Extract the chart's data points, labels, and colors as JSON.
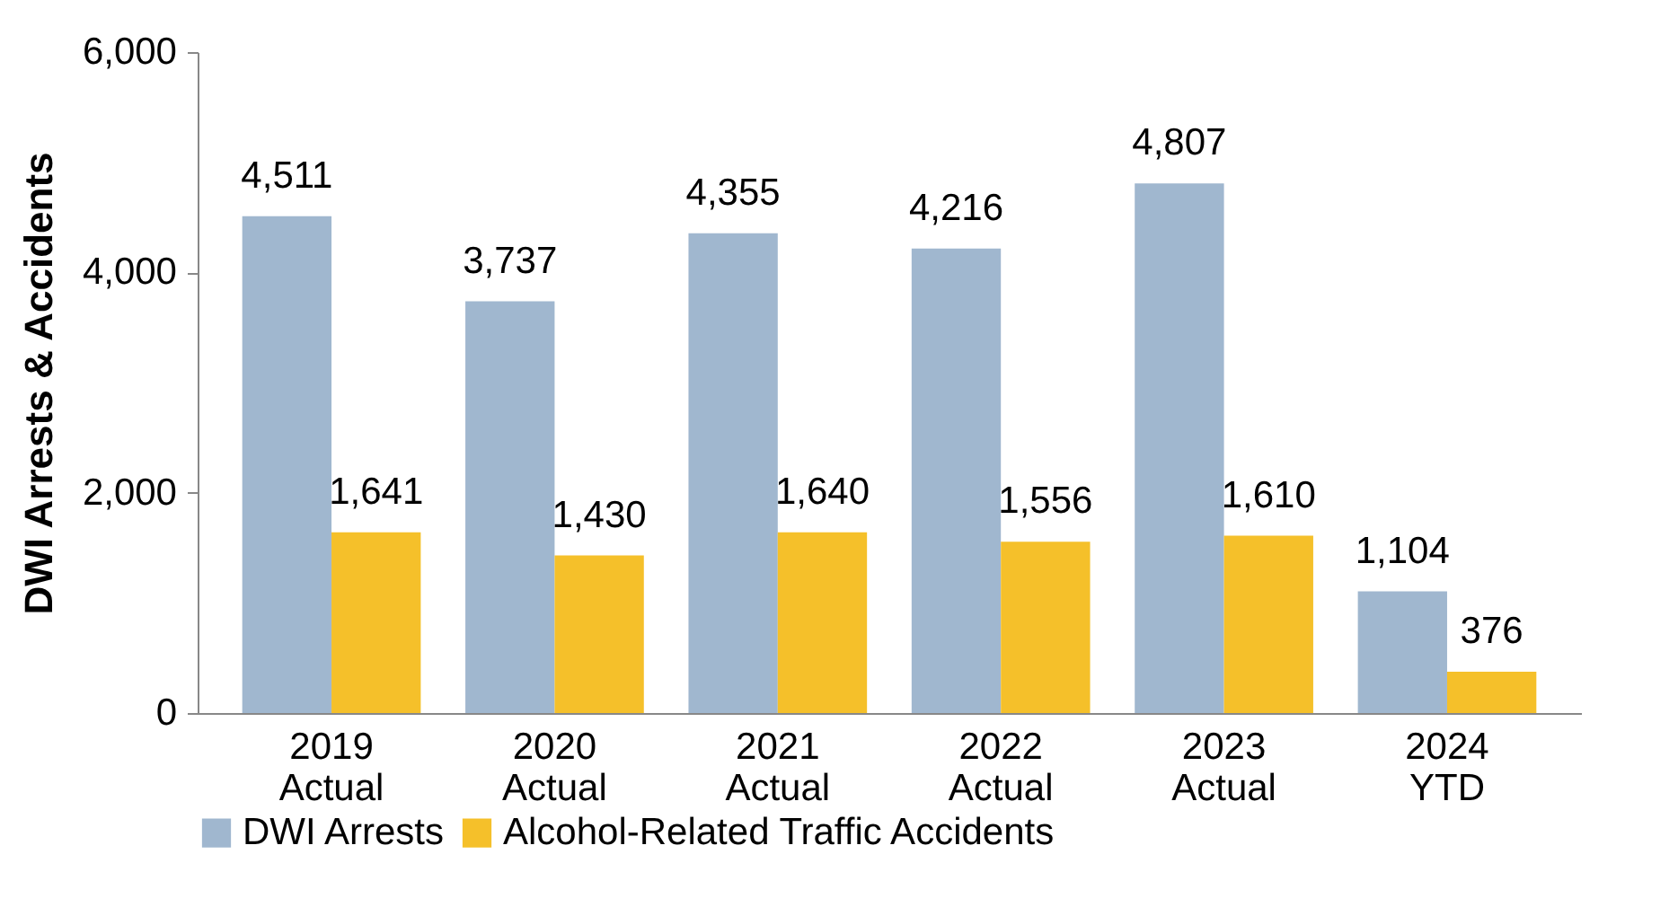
{
  "chart_data": {
    "type": "bar",
    "ylabel": "DWI Arrests & Accidents",
    "categories": [
      "2019\nActual",
      "2020\nActual",
      "2021\nActual",
      "2022\nActual",
      "2023\nActual",
      "2024\nYTD"
    ],
    "series": [
      {
        "name": "DWI Arrests",
        "color": "#a0b7cf",
        "values": [
          4511,
          3737,
          4355,
          4216,
          4807,
          1104
        ],
        "value_labels": [
          "4,511",
          "3,737",
          "4,355",
          "4,216",
          "4,807",
          "1,104"
        ]
      },
      {
        "name": "Alcohol-Related Traffic Accidents",
        "color": "#f5c02a",
        "values": [
          1641,
          1430,
          1640,
          1556,
          1610,
          376
        ],
        "value_labels": [
          "1,641",
          "1,430",
          "1,640",
          "1,556",
          "1,610",
          "376"
        ]
      }
    ],
    "ylim": [
      0,
      6000
    ],
    "yticks": [
      {
        "value": 0,
        "label": "0"
      },
      {
        "value": 2000,
        "label": "2,000"
      },
      {
        "value": 4000,
        "label": "4,000"
      },
      {
        "value": 6000,
        "label": "6,000"
      }
    ],
    "grid": false,
    "legend": "bottom"
  }
}
